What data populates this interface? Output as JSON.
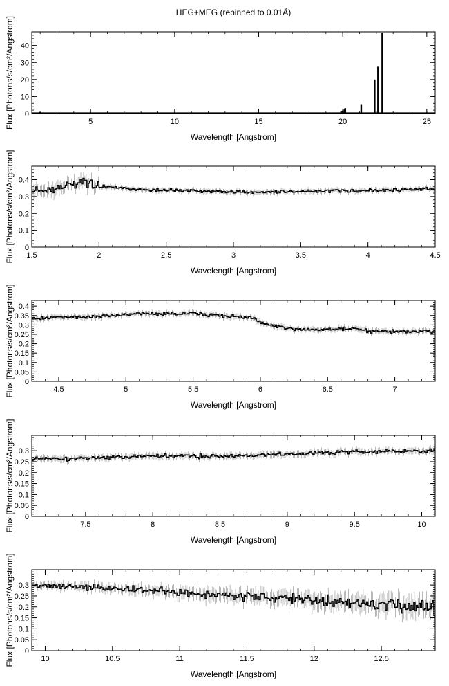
{
  "title": "HEG+MEG (rebinned to 0.01Å)",
  "chart_data": [
    {
      "type": "line",
      "xlabel": "Wavelength [Angstrom]",
      "ylabel": "Flux [Photons/s/cm²/Angstrom]",
      "xlim": [
        1.5,
        25.5
      ],
      "ylim": [
        0,
        48
      ],
      "xticks": [
        5,
        10,
        15,
        20,
        25
      ],
      "yticks": [
        0,
        10,
        20,
        30,
        40
      ],
      "xtick_labels": [
        "5",
        "10",
        "15",
        "20",
        "25"
      ],
      "ytick_labels": [
        "0",
        "10",
        "20",
        "30",
        "40"
      ],
      "baseline": 0.35,
      "lines": [
        {
          "x": 2.0,
          "y": 0.9
        },
        {
          "x": 19.9,
          "y": 1.2
        },
        {
          "x": 20.0,
          "y": 1.8
        },
        {
          "x": 20.1,
          "y": 2.5
        },
        {
          "x": 20.15,
          "y": 3.2
        },
        {
          "x": 21.1,
          "y": 5.5
        },
        {
          "x": 21.9,
          "y": 20.0
        },
        {
          "x": 22.1,
          "y": 27.5
        },
        {
          "x": 22.35,
          "y": 47.5
        }
      ]
    },
    {
      "type": "line",
      "xlabel": "Wavelength [Angstrom]",
      "ylabel": "Flux [Photons/s/cm²/Angstrom]",
      "xlim": [
        1.5,
        4.5
      ],
      "ylim": [
        0,
        0.48
      ],
      "xticks": [
        1.5,
        2,
        2.5,
        3,
        3.5,
        4,
        4.5
      ],
      "yticks": [
        0,
        0.1,
        0.2,
        0.3,
        0.4
      ],
      "xtick_labels": [
        "1.5",
        "2",
        "2.5",
        "3",
        "3.5",
        "4",
        "4.5"
      ],
      "ytick_labels": [
        "0",
        "0.1",
        "0.2",
        "0.3",
        "0.4"
      ],
      "profile": [
        [
          1.5,
          0.34
        ],
        [
          1.6,
          0.33
        ],
        [
          1.7,
          0.36
        ],
        [
          1.8,
          0.37
        ],
        [
          1.9,
          0.38
        ],
        [
          2.0,
          0.36
        ],
        [
          2.3,
          0.34
        ],
        [
          2.7,
          0.335
        ],
        [
          3.0,
          0.325
        ],
        [
          3.5,
          0.33
        ],
        [
          4.0,
          0.335
        ],
        [
          4.5,
          0.345
        ]
      ]
    },
    {
      "type": "line",
      "xlabel": "Wavelength [Angstrom]",
      "ylabel": "Flux [Photons/s/cm²/Angstrom]",
      "xlim": [
        4.3,
        7.3
      ],
      "ylim": [
        0,
        0.43
      ],
      "xticks": [
        4.5,
        5,
        5.5,
        6,
        6.5,
        7
      ],
      "yticks": [
        0,
        0.05,
        0.1,
        0.15,
        0.2,
        0.25,
        0.3,
        0.35,
        0.4
      ],
      "xtick_labels": [
        "4.5",
        "5",
        "5.5",
        "6",
        "6.5",
        "7"
      ],
      "ytick_labels": [
        "0",
        "0.05",
        "0.1",
        "0.15",
        "0.2",
        "0.25",
        "0.3",
        "0.35",
        "0.4"
      ],
      "profile": [
        [
          4.3,
          0.335
        ],
        [
          4.8,
          0.345
        ],
        [
          5.1,
          0.36
        ],
        [
          5.5,
          0.36
        ],
        [
          5.8,
          0.345
        ],
        [
          5.95,
          0.335
        ],
        [
          6.05,
          0.3
        ],
        [
          6.2,
          0.28
        ],
        [
          6.5,
          0.275
        ],
        [
          6.7,
          0.28
        ],
        [
          6.8,
          0.265
        ],
        [
          7.3,
          0.265
        ]
      ]
    },
    {
      "type": "line",
      "xlabel": "Wavelength [Angstrom]",
      "ylabel": "Flux [Photons/s/cm²/Angstrom]",
      "xlim": [
        7.1,
        10.1
      ],
      "ylim": [
        0,
        0.37
      ],
      "xticks": [
        7.5,
        8,
        8.5,
        9,
        9.5,
        10
      ],
      "yticks": [
        0,
        0.05,
        0.1,
        0.15,
        0.2,
        0.25,
        0.3
      ],
      "xtick_labels": [
        "7.5",
        "8",
        "8.5",
        "9",
        "9.5",
        "10"
      ],
      "ytick_labels": [
        "0",
        "0.05",
        "0.1",
        "0.15",
        "0.2",
        "0.25",
        "0.3"
      ],
      "profile": [
        [
          7.1,
          0.262
        ],
        [
          7.5,
          0.265
        ],
        [
          8.0,
          0.275
        ],
        [
          8.5,
          0.275
        ],
        [
          9.0,
          0.285
        ],
        [
          9.5,
          0.295
        ],
        [
          10.1,
          0.3
        ]
      ]
    },
    {
      "type": "line",
      "xlabel": "Wavelength [Angstrom]",
      "ylabel": "Flux [Photons/s/cm²/Angstrom]",
      "xlim": [
        9.9,
        12.9
      ],
      "ylim": [
        0,
        0.37
      ],
      "xticks": [
        10,
        10.5,
        11,
        11.5,
        12,
        12.5
      ],
      "yticks": [
        0,
        0.05,
        0.1,
        0.15,
        0.2,
        0.25,
        0.3
      ],
      "xtick_labels": [
        "10",
        "10.5",
        "11",
        "11.5",
        "12",
        "12.5"
      ],
      "ytick_labels": [
        "0",
        "0.05",
        "0.1",
        "0.15",
        "0.2",
        "0.25",
        "0.3"
      ],
      "profile": [
        [
          9.9,
          0.3
        ],
        [
          10.5,
          0.285
        ],
        [
          11.0,
          0.265
        ],
        [
          11.5,
          0.25
        ],
        [
          12.0,
          0.23
        ],
        [
          12.5,
          0.21
        ],
        [
          12.9,
          0.2
        ]
      ]
    }
  ]
}
